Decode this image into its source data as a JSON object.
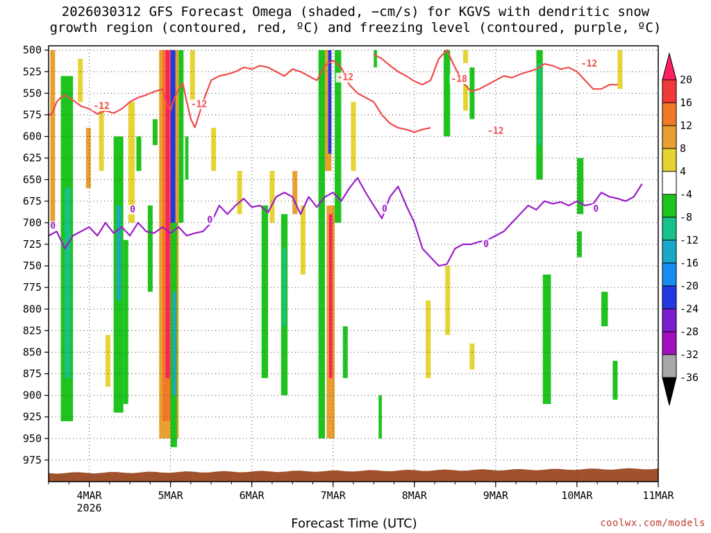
{
  "title_line1": "2026030312 GFS Forecast Omega (shaded, −cm/s) for KGVS with dendritic snow",
  "title_line2": "growth region (contoured, red, ºC) and freezing level (contoured, purple, ºC)",
  "credit": "coolwx.com/models",
  "chart_data": {
    "type": "heatmap",
    "title": "2026030312 GFS Forecast Omega (shaded, −cm/s) for KGVS with dendritic snow growth region (contoured, red, ºC) and freezing level (contoured, purple, ºC)",
    "xlabel": "Forecast Time (UTC)",
    "ylabel": "",
    "x_ticks": [
      {
        "t": 0.5,
        "label": "4MAR",
        "sub": "2026"
      },
      {
        "t": 1.5,
        "label": "5MAR"
      },
      {
        "t": 2.5,
        "label": "6MAR"
      },
      {
        "t": 3.5,
        "label": "7MAR"
      },
      {
        "t": 4.5,
        "label": "8MAR"
      },
      {
        "t": 5.5,
        "label": "9MAR"
      },
      {
        "t": 6.5,
        "label": "10MAR"
      },
      {
        "t": 7.5,
        "label": "11MAR"
      }
    ],
    "xlim": [
      0,
      7.5
    ],
    "y_ticks": [
      500,
      525,
      550,
      575,
      600,
      625,
      650,
      675,
      700,
      725,
      750,
      775,
      800,
      825,
      850,
      875,
      900,
      925,
      950,
      975
    ],
    "ylim": [
      1000,
      495
    ],
    "grid": true,
    "colorbar": {
      "labels": [
        "20",
        "16",
        "12",
        "8",
        "4",
        "-4",
        "-8",
        "-12",
        "-16",
        "-20",
        "-24",
        "-28",
        "-32",
        "-36"
      ],
      "colors": [
        "#ff1f5f",
        "#f03a3a",
        "#f07a28",
        "#e8a030",
        "#e6d432",
        "#ffffff",
        "#1ec31e",
        "#18c08c",
        "#1aa8c8",
        "#1a8cf0",
        "#2238e0",
        "#7a1cd0",
        "#a010c0",
        "#a8a8a8"
      ]
    },
    "omega_features": [
      {
        "t0": 0.02,
        "t1": 0.08,
        "p0": 500,
        "p1": 700,
        "v": 8
      },
      {
        "t0": 0.15,
        "t1": 0.3,
        "p0": 530,
        "p1": 930,
        "v": -8
      },
      {
        "t0": 0.2,
        "t1": 0.27,
        "p0": 660,
        "p1": 880,
        "v": -12
      },
      {
        "t0": 0.36,
        "t1": 0.42,
        "p0": 510,
        "p1": 560,
        "v": 4
      },
      {
        "t0": 0.46,
        "t1": 0.52,
        "p0": 590,
        "p1": 660,
        "v": 8
      },
      {
        "t0": 0.62,
        "t1": 0.68,
        "p0": 560,
        "p1": 640,
        "v": 4
      },
      {
        "t0": 0.7,
        "t1": 0.76,
        "p0": 830,
        "p1": 890,
        "v": 4
      },
      {
        "t0": 0.8,
        "t1": 0.92,
        "p0": 600,
        "p1": 920,
        "v": -8
      },
      {
        "t0": 0.84,
        "t1": 0.89,
        "p0": 680,
        "p1": 790,
        "v": -16
      },
      {
        "t0": 0.92,
        "t1": 0.98,
        "p0": 720,
        "p1": 910,
        "v": -8
      },
      {
        "t0": 0.98,
        "t1": 1.06,
        "p0": 560,
        "p1": 700,
        "v": 4
      },
      {
        "t0": 1.08,
        "t1": 1.14,
        "p0": 600,
        "p1": 640,
        "v": -8
      },
      {
        "t0": 1.22,
        "t1": 1.28,
        "p0": 680,
        "p1": 780,
        "v": -8
      },
      {
        "t0": 1.28,
        "t1": 1.34,
        "p0": 580,
        "p1": 610,
        "v": -8
      },
      {
        "t0": 1.36,
        "t1": 1.6,
        "p0": 500,
        "p1": 950,
        "v": 8
      },
      {
        "t0": 1.4,
        "t1": 1.52,
        "p0": 500,
        "p1": 930,
        "v": 12
      },
      {
        "t0": 1.44,
        "t1": 1.49,
        "p0": 500,
        "p1": 880,
        "v": 20
      },
      {
        "t0": 1.5,
        "t1": 1.56,
        "p0": 500,
        "p1": 700,
        "v": -24
      },
      {
        "t0": 1.5,
        "t1": 1.58,
        "p0": 700,
        "p1": 960,
        "v": -8
      },
      {
        "t0": 1.53,
        "t1": 1.57,
        "p0": 780,
        "p1": 900,
        "v": -16
      },
      {
        "t0": 1.6,
        "t1": 1.66,
        "p0": 500,
        "p1": 700,
        "v": -8
      },
      {
        "t0": 1.68,
        "t1": 1.72,
        "p0": 600,
        "p1": 650,
        "v": -8
      },
      {
        "t0": 1.74,
        "t1": 1.8,
        "p0": 500,
        "p1": 560,
        "v": 4
      },
      {
        "t0": 2.0,
        "t1": 2.06,
        "p0": 590,
        "p1": 640,
        "v": 4
      },
      {
        "t0": 2.32,
        "t1": 2.38,
        "p0": 640,
        "p1": 690,
        "v": 4
      },
      {
        "t0": 2.62,
        "t1": 2.7,
        "p0": 680,
        "p1": 880,
        "v": -8
      },
      {
        "t0": 2.72,
        "t1": 2.78,
        "p0": 640,
        "p1": 700,
        "v": 4
      },
      {
        "t0": 2.86,
        "t1": 2.94,
        "p0": 690,
        "p1": 900,
        "v": -8
      },
      {
        "t0": 2.88,
        "t1": 2.92,
        "p0": 730,
        "p1": 820,
        "v": -12
      },
      {
        "t0": 3.0,
        "t1": 3.06,
        "p0": 640,
        "p1": 690,
        "v": 8
      },
      {
        "t0": 3.1,
        "t1": 3.16,
        "p0": 680,
        "p1": 760,
        "v": 4
      },
      {
        "t0": 3.32,
        "t1": 3.4,
        "p0": 500,
        "p1": 950,
        "v": -8
      },
      {
        "t0": 3.4,
        "t1": 3.48,
        "p0": 500,
        "p1": 640,
        "v": 8
      },
      {
        "t0": 3.42,
        "t1": 3.52,
        "p0": 680,
        "p1": 950,
        "v": 8
      },
      {
        "t0": 3.44,
        "t1": 3.48,
        "p0": 500,
        "p1": 620,
        "v": -24
      },
      {
        "t0": 3.45,
        "t1": 3.49,
        "p0": 690,
        "p1": 880,
        "v": 20
      },
      {
        "t0": 3.52,
        "t1": 3.6,
        "p0": 500,
        "p1": 700,
        "v": -8
      },
      {
        "t0": 3.62,
        "t1": 3.68,
        "p0": 820,
        "p1": 880,
        "v": -8
      },
      {
        "t0": 3.72,
        "t1": 3.78,
        "p0": 560,
        "p1": 640,
        "v": 4
      },
      {
        "t0": 4.0,
        "t1": 4.04,
        "p0": 500,
        "p1": 520,
        "v": -8
      },
      {
        "t0": 4.06,
        "t1": 4.1,
        "p0": 900,
        "p1": 950,
        "v": -8
      },
      {
        "t0": 4.64,
        "t1": 4.7,
        "p0": 790,
        "p1": 880,
        "v": 4
      },
      {
        "t0": 4.86,
        "t1": 4.94,
        "p0": 500,
        "p1": 600,
        "v": -8
      },
      {
        "t0": 4.88,
        "t1": 4.94,
        "p0": 750,
        "p1": 830,
        "v": 4
      },
      {
        "t0": 5.1,
        "t1": 5.16,
        "p0": 500,
        "p1": 515,
        "v": 4
      },
      {
        "t0": 5.1,
        "t1": 5.16,
        "p0": 540,
        "p1": 570,
        "v": 4
      },
      {
        "t0": 5.18,
        "t1": 5.24,
        "p0": 520,
        "p1": 580,
        "v": -8
      },
      {
        "t0": 5.18,
        "t1": 5.24,
        "p0": 840,
        "p1": 870,
        "v": 4
      },
      {
        "t0": 6.0,
        "t1": 6.08,
        "p0": 500,
        "p1": 650,
        "v": -8
      },
      {
        "t0": 6.02,
        "t1": 6.06,
        "p0": 515,
        "p1": 610,
        "v": -12
      },
      {
        "t0": 6.08,
        "t1": 6.18,
        "p0": 760,
        "p1": 910,
        "v": -8
      },
      {
        "t0": 6.5,
        "t1": 6.58,
        "p0": 625,
        "p1": 690,
        "v": -8
      },
      {
        "t0": 6.5,
        "t1": 6.56,
        "p0": 710,
        "p1": 740,
        "v": -8
      },
      {
        "t0": 6.8,
        "t1": 6.88,
        "p0": 780,
        "p1": 820,
        "v": -8
      },
      {
        "t0": 7.0,
        "t1": 7.06,
        "p0": 500,
        "p1": 545,
        "v": 4
      },
      {
        "t0": 6.94,
        "t1": 7.0,
        "p0": 860,
        "p1": 905,
        "v": -8
      }
    ],
    "series": [
      {
        "name": "-12",
        "color": "#f04a4a",
        "x": [
          0,
          0.05,
          0.1,
          0.15,
          0.2,
          0.3,
          0.4,
          0.5,
          0.6,
          0.7,
          0.8,
          0.9,
          1.0,
          1.1,
          1.2,
          1.3,
          1.4,
          1.45,
          1.5,
          1.55,
          1.6,
          1.65,
          1.7,
          1.75,
          1.8
        ],
        "y": [
          576,
          572,
          560,
          555,
          552,
          558,
          565,
          568,
          574,
          570,
          573,
          568,
          560,
          555,
          552,
          548,
          545,
          562,
          570,
          555,
          545,
          538,
          560,
          580,
          590
        ]
      },
      {
        "name": "-12",
        "color": "#f04a4a",
        "x": [
          1.8,
          1.9,
          2.0,
          2.1,
          2.2,
          2.3,
          2.4,
          2.5,
          2.6,
          2.7,
          2.8,
          2.9,
          3.0,
          3.1,
          3.2,
          3.3,
          3.4,
          3.5,
          3.6,
          3.7,
          3.8,
          3.9,
          4.0,
          4.1,
          4.2,
          4.3,
          4.4,
          4.5,
          4.6,
          4.7
        ],
        "y": [
          590,
          560,
          535,
          530,
          528,
          525,
          520,
          522,
          518,
          520,
          525,
          530,
          522,
          525,
          530,
          535,
          518,
          512,
          520,
          540,
          550,
          555,
          560,
          575,
          585,
          590,
          592,
          595,
          592,
          590
        ]
      },
      {
        "name": "-18",
        "color": "#f04a4a",
        "x": [
          4.0,
          4.1,
          4.2,
          4.3,
          4.4,
          4.5,
          4.6,
          4.7,
          4.8,
          4.9,
          5.0,
          5.1,
          5.2,
          5.3,
          5.4,
          5.5,
          5.6,
          5.7,
          5.8,
          5.9,
          6.0,
          6.1,
          6.2,
          6.3,
          6.4,
          6.5,
          6.6,
          6.7,
          6.8,
          6.9,
          7.0
        ],
        "y": [
          505,
          510,
          518,
          525,
          530,
          536,
          540,
          535,
          510,
          500,
          520,
          538,
          548,
          545,
          540,
          535,
          530,
          532,
          528,
          525,
          522,
          516,
          518,
          522,
          520,
          525,
          535,
          545,
          545,
          540,
          540
        ]
      },
      {
        "name": "0",
        "color": "#9a1cc8",
        "x": [
          0,
          0.1,
          0.2,
          0.3,
          0.4,
          0.5,
          0.6,
          0.7,
          0.8,
          0.9,
          1.0,
          1.1,
          1.2,
          1.3,
          1.4,
          1.5,
          1.6,
          1.7,
          1.8,
          1.9,
          2.0,
          2.1,
          2.2,
          2.3,
          2.4,
          2.5,
          2.6,
          2.7,
          2.8,
          2.9,
          3.0,
          3.1,
          3.2,
          3.3,
          3.4,
          3.5,
          3.6,
          3.7,
          3.8,
          3.9,
          4.0,
          4.1,
          4.2,
          4.3,
          4.4,
          4.5,
          4.6,
          4.7,
          4.8,
          4.9,
          5.0,
          5.1,
          5.2,
          5.3,
          5.4,
          5.5,
          5.6,
          5.7,
          5.8,
          5.9,
          6.0,
          6.1,
          6.2,
          6.3,
          6.4,
          6.5,
          6.6,
          6.7,
          6.8,
          6.9,
          7.0,
          7.1,
          7.2,
          7.3
        ],
        "y": [
          715,
          710,
          730,
          715,
          710,
          705,
          715,
          700,
          712,
          705,
          715,
          700,
          710,
          712,
          705,
          712,
          705,
          715,
          712,
          710,
          700,
          680,
          690,
          680,
          672,
          682,
          680,
          688,
          670,
          665,
          670,
          690,
          670,
          682,
          670,
          665,
          675,
          660,
          648,
          665,
          680,
          695,
          670,
          658,
          680,
          700,
          730,
          740,
          750,
          748,
          730,
          725,
          725,
          722,
          720,
          715,
          710,
          700,
          690,
          680,
          685,
          675,
          678,
          676,
          680,
          675,
          680,
          678,
          665,
          670,
          672,
          675,
          670,
          655
        ]
      }
    ],
    "contour_labels": [
      {
        "text": "-12",
        "x": 0.55,
        "y": 568,
        "color": "#f04a4a"
      },
      {
        "text": "-12",
        "x": 1.75,
        "y": 566,
        "color": "#f04a4a"
      },
      {
        "text": "-12",
        "x": 3.55,
        "y": 535,
        "color": "#f04a4a"
      },
      {
        "text": "-18",
        "x": 4.95,
        "y": 537,
        "color": "#f04a4a"
      },
      {
        "text": "-12",
        "x": 5.4,
        "y": 597,
        "color": "#f04a4a"
      },
      {
        "text": "-12",
        "x": 6.55,
        "y": 519,
        "color": "#f04a4a"
      },
      {
        "text": "0",
        "x": 0.02,
        "y": 707,
        "color": "#9a1cc8"
      },
      {
        "text": "0",
        "x": 1.0,
        "y": 688,
        "color": "#9a1cc8"
      },
      {
        "text": "0",
        "x": 1.95,
        "y": 700,
        "color": "#9a1cc8"
      },
      {
        "text": "0",
        "x": 4.1,
        "y": 687,
        "color": "#9a1cc8"
      },
      {
        "text": "0",
        "x": 5.35,
        "y": 728,
        "color": "#9a1cc8"
      },
      {
        "text": "0",
        "x": 6.7,
        "y": 687,
        "color": "#9a1cc8"
      }
    ],
    "terrain": {
      "color": "#a0522d",
      "p_top_start": 990,
      "p_top_end": 985
    }
  }
}
